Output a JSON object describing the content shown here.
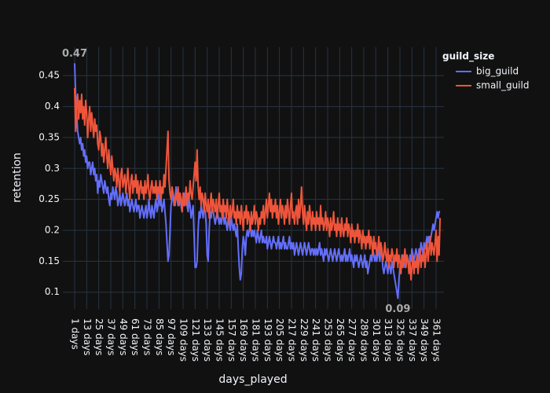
{
  "chart_data": {
    "type": "line",
    "xlabel": "days_played",
    "ylabel": "retention",
    "legend_title": "guild_size",
    "categories": [
      "1 days",
      null,
      null,
      null,
      null,
      null,
      null,
      null,
      null,
      null,
      null,
      null,
      "13 days",
      null,
      null,
      null,
      null,
      null,
      null,
      null,
      null,
      null,
      null,
      null,
      "25 days",
      null,
      null,
      null,
      null,
      null,
      null,
      null,
      null,
      null,
      null,
      null,
      "37 days",
      null,
      null,
      null,
      null,
      null,
      null,
      null,
      null,
      null,
      null,
      null,
      "49 days",
      null,
      null,
      null,
      null,
      null,
      null,
      null,
      null,
      null,
      null,
      null,
      "61 days",
      null,
      null,
      null,
      null,
      null,
      null,
      null,
      null,
      null,
      null,
      null,
      "73 days",
      null,
      null,
      null,
      null,
      null,
      null,
      null,
      null,
      null,
      null,
      null,
      "85 days",
      null,
      null,
      null,
      null,
      null,
      null,
      null,
      null,
      null,
      null,
      null,
      "97 days",
      null,
      null,
      null,
      null,
      null,
      null,
      null,
      null,
      null,
      null,
      null,
      "109 days",
      null,
      null,
      null,
      null,
      null,
      null,
      null,
      null,
      null,
      null,
      null,
      "121 days",
      null,
      null,
      null,
      null,
      null,
      null,
      null,
      null,
      null,
      null,
      null,
      "133 days",
      null,
      null,
      null,
      null,
      null,
      null,
      null,
      null,
      null,
      null,
      null,
      "145 days",
      null,
      null,
      null,
      null,
      null,
      null,
      null,
      null,
      null,
      null,
      null,
      "157 days",
      null,
      null,
      null,
      null,
      null,
      null,
      null,
      null,
      null,
      null,
      null,
      "169 days",
      null,
      null,
      null,
      null,
      null,
      null,
      null,
      null,
      null,
      null,
      null,
      "181 days",
      null,
      null,
      null,
      null,
      null,
      null,
      null,
      null,
      null,
      null,
      null,
      "193 days",
      null,
      null,
      null,
      null,
      null,
      null,
      null,
      null,
      null,
      null,
      null,
      "205 days",
      null,
      null,
      null,
      null,
      null,
      null,
      null,
      null,
      null,
      null,
      null,
      "217 days",
      null,
      null,
      null,
      null,
      null,
      null,
      null,
      null,
      null,
      null,
      null,
      "229 days",
      null,
      null,
      null,
      null,
      null,
      null,
      null,
      null,
      null,
      null,
      null,
      "241 days",
      null,
      null,
      null,
      null,
      null,
      null,
      null,
      null,
      null,
      null,
      null,
      "253 days",
      null,
      null,
      null,
      null,
      null,
      null,
      null,
      null,
      null,
      null,
      null,
      "265 days",
      null,
      null,
      null,
      null,
      null,
      null,
      null,
      null,
      null,
      null,
      null,
      "277 days",
      null,
      null,
      null,
      null,
      null,
      null,
      null,
      null,
      null,
      null,
      null,
      "289 days",
      null,
      null,
      null,
      null,
      null,
      null,
      null,
      null,
      null,
      null,
      null,
      "301 days",
      null,
      null,
      null,
      null,
      null,
      null,
      null,
      null,
      null,
      null,
      null,
      "313 days",
      null,
      null,
      null,
      null,
      null,
      null,
      null,
      null,
      null,
      null,
      null,
      "325 days",
      null,
      null,
      null,
      null,
      null,
      null,
      null,
      null,
      null,
      null,
      null,
      "337 days",
      null,
      null,
      null,
      null,
      null,
      null,
      null,
      null,
      null,
      null,
      null,
      "349 days",
      null,
      null,
      null,
      null,
      null,
      null,
      null,
      null,
      null,
      null,
      null,
      "361 days",
      null,
      null,
      null,
      null
    ],
    "series": [
      {
        "name": "big_guild",
        "color": "#636efa",
        "values": [
          0.47,
          0.42,
          0.39,
          0.36,
          0.35,
          0.34,
          0.35,
          0.33,
          0.34,
          0.32,
          0.33,
          0.31,
          0.32,
          0.3,
          0.31,
          0.31,
          0.29,
          0.3,
          0.31,
          0.29,
          0.3,
          0.28,
          0.29,
          0.26,
          0.28,
          0.27,
          0.29,
          0.28,
          0.27,
          0.26,
          0.28,
          0.27,
          0.26,
          0.27,
          0.25,
          0.24,
          0.26,
          0.25,
          0.27,
          0.26,
          0.25,
          0.27,
          0.26,
          0.24,
          0.25,
          0.26,
          0.24,
          0.25,
          0.26,
          0.25,
          0.24,
          0.25,
          0.26,
          0.24,
          0.25,
          0.23,
          0.24,
          0.25,
          0.24,
          0.23,
          0.24,
          0.25,
          0.23,
          0.24,
          0.24,
          0.22,
          0.23,
          0.24,
          0.23,
          0.22,
          0.23,
          0.24,
          0.22,
          0.23,
          0.25,
          0.23,
          0.22,
          0.24,
          0.23,
          0.22,
          0.24,
          0.25,
          0.23,
          0.24,
          0.26,
          0.24,
          0.25,
          0.23,
          0.24,
          0.25,
          0.23,
          0.21,
          0.18,
          0.15,
          0.16,
          0.2,
          0.24,
          0.25,
          0.26,
          0.24,
          0.25,
          0.27,
          0.25,
          0.24,
          0.26,
          0.25,
          0.24,
          0.23,
          0.25,
          0.26,
          0.24,
          0.25,
          0.24,
          0.23,
          0.25,
          0.24,
          0.22,
          0.23,
          0.24,
          0.19,
          0.14,
          0.14,
          0.15,
          0.2,
          0.23,
          0.22,
          0.24,
          0.23,
          0.22,
          0.24,
          0.23,
          0.21,
          0.16,
          0.15,
          0.2,
          0.23,
          0.22,
          0.24,
          0.23,
          0.22,
          0.21,
          0.22,
          0.23,
          0.22,
          0.21,
          0.22,
          0.21,
          0.22,
          0.23,
          0.21,
          0.22,
          0.21,
          0.2,
          0.22,
          0.21,
          0.2,
          0.22,
          0.21,
          0.2,
          0.21,
          0.2,
          0.19,
          0.21,
          0.17,
          0.14,
          0.12,
          0.13,
          0.17,
          0.19,
          0.18,
          0.16,
          0.19,
          0.2,
          0.19,
          0.2,
          0.21,
          0.19,
          0.2,
          0.19,
          0.2,
          0.19,
          0.18,
          0.2,
          0.19,
          0.18,
          0.19,
          0.2,
          0.18,
          0.19,
          0.18,
          0.18,
          0.19,
          0.17,
          0.18,
          0.19,
          0.18,
          0.17,
          0.18,
          0.19,
          0.18,
          0.18,
          0.17,
          0.18,
          0.19,
          0.17,
          0.18,
          0.17,
          0.18,
          0.19,
          0.17,
          0.18,
          0.17,
          0.17,
          0.18,
          0.19,
          0.17,
          0.18,
          0.17,
          0.18,
          0.16,
          0.17,
          0.18,
          0.17,
          0.16,
          0.17,
          0.18,
          0.17,
          0.16,
          0.17,
          0.18,
          0.17,
          0.16,
          0.17,
          0.18,
          0.17,
          0.16,
          0.17,
          0.17,
          0.16,
          0.17,
          0.16,
          0.17,
          0.16,
          0.17,
          0.18,
          0.16,
          0.17,
          0.16,
          0.15,
          0.17,
          0.16,
          0.17,
          0.16,
          0.15,
          0.16,
          0.17,
          0.16,
          0.15,
          0.16,
          0.17,
          0.16,
          0.15,
          0.16,
          0.17,
          0.16,
          0.15,
          0.16,
          0.15,
          0.16,
          0.17,
          0.15,
          0.16,
          0.15,
          0.16,
          0.17,
          0.15,
          0.16,
          0.15,
          0.14,
          0.16,
          0.15,
          0.16,
          0.15,
          0.14,
          0.15,
          0.16,
          0.15,
          0.14,
          0.15,
          0.16,
          0.14,
          0.15,
          0.13,
          0.14,
          0.15,
          0.16,
          0.15,
          0.17,
          0.16,
          0.15,
          0.16,
          0.15,
          0.17,
          0.16,
          0.15,
          0.17,
          0.16,
          0.14,
          0.13,
          0.14,
          0.15,
          0.14,
          0.13,
          0.15,
          0.14,
          0.13,
          0.15,
          0.14,
          0.13,
          0.12,
          0.11,
          0.1,
          0.09,
          0.12,
          0.14,
          0.15,
          0.14,
          0.16,
          0.15,
          0.14,
          0.15,
          0.16,
          0.15,
          0.14,
          0.16,
          0.15,
          0.17,
          0.16,
          0.15,
          0.16,
          0.17,
          0.16,
          0.15,
          0.17,
          0.16,
          0.18,
          0.17,
          0.16,
          0.18,
          0.17,
          0.18,
          0.19,
          0.18,
          0.19,
          0.18,
          0.19,
          0.2,
          0.21,
          0.2,
          0.21,
          0.22,
          0.23,
          0.22,
          0.23,
          0.23
        ]
      },
      {
        "name": "small_guild",
        "color": "#EF553B",
        "values": [
          0.43,
          0.36,
          0.4,
          0.42,
          0.38,
          0.41,
          0.39,
          0.42,
          0.38,
          0.4,
          0.37,
          0.41,
          0.39,
          0.35,
          0.38,
          0.4,
          0.36,
          0.39,
          0.37,
          0.35,
          0.38,
          0.36,
          0.37,
          0.34,
          0.33,
          0.36,
          0.35,
          0.32,
          0.34,
          0.31,
          0.33,
          0.35,
          0.32,
          0.3,
          0.33,
          0.31,
          0.29,
          0.32,
          0.3,
          0.28,
          0.3,
          0.29,
          0.27,
          0.3,
          0.28,
          0.26,
          0.29,
          0.3,
          0.27,
          0.28,
          0.29,
          0.26,
          0.28,
          0.3,
          0.27,
          0.25,
          0.28,
          0.29,
          0.26,
          0.28,
          0.27,
          0.29,
          0.26,
          0.28,
          0.25,
          0.27,
          0.28,
          0.26,
          0.27,
          0.25,
          0.28,
          0.26,
          0.27,
          0.29,
          0.26,
          0.25,
          0.27,
          0.28,
          0.26,
          0.27,
          0.26,
          0.28,
          0.25,
          0.27,
          0.26,
          0.28,
          0.25,
          0.27,
          0.26,
          0.29,
          0.27,
          0.3,
          0.33,
          0.36,
          0.28,
          0.26,
          0.25,
          0.27,
          0.26,
          0.25,
          0.24,
          0.26,
          0.25,
          0.27,
          0.24,
          0.26,
          0.25,
          0.23,
          0.26,
          0.24,
          0.25,
          0.27,
          0.24,
          0.26,
          0.25,
          0.28,
          0.26,
          0.25,
          0.27,
          0.29,
          0.31,
          0.28,
          0.33,
          0.27,
          0.25,
          0.27,
          0.24,
          0.26,
          0.25,
          0.23,
          0.26,
          0.24,
          0.23,
          0.25,
          0.22,
          0.24,
          0.26,
          0.23,
          0.25,
          0.24,
          0.23,
          0.25,
          0.22,
          0.24,
          0.26,
          0.23,
          0.24,
          0.22,
          0.25,
          0.23,
          0.24,
          0.22,
          0.25,
          0.23,
          0.21,
          0.24,
          0.22,
          0.23,
          0.25,
          0.22,
          0.23,
          0.21,
          0.24,
          0.22,
          0.23,
          0.21,
          0.24,
          0.22,
          0.2,
          0.23,
          0.22,
          0.24,
          0.21,
          0.23,
          0.22,
          0.2,
          0.23,
          0.21,
          0.22,
          0.24,
          0.21,
          0.23,
          0.22,
          0.2,
          0.22,
          0.21,
          0.23,
          0.22,
          0.24,
          0.21,
          0.23,
          0.25,
          0.22,
          0.24,
          0.26,
          0.23,
          0.25,
          0.22,
          0.24,
          0.23,
          0.25,
          0.22,
          0.24,
          0.21,
          0.23,
          0.25,
          0.22,
          0.24,
          0.23,
          0.21,
          0.24,
          0.22,
          0.25,
          0.23,
          0.21,
          0.24,
          0.26,
          0.22,
          0.23,
          0.21,
          0.23,
          0.24,
          0.21,
          0.25,
          0.22,
          0.24,
          0.27,
          0.23,
          0.21,
          0.24,
          0.22,
          0.2,
          0.23,
          0.21,
          0.24,
          0.22,
          0.2,
          0.23,
          0.21,
          0.22,
          0.2,
          0.23,
          0.21,
          0.22,
          0.2,
          0.24,
          0.21,
          0.22,
          0.2,
          0.21,
          0.23,
          0.2,
          0.22,
          0.21,
          0.19,
          0.22,
          0.2,
          0.21,
          0.23,
          0.2,
          0.21,
          0.19,
          0.22,
          0.2,
          0.21,
          0.19,
          0.22,
          0.2,
          0.19,
          0.21,
          0.2,
          0.22,
          0.19,
          0.21,
          0.2,
          0.18,
          0.21,
          0.19,
          0.2,
          0.18,
          0.2,
          0.19,
          0.21,
          0.18,
          0.2,
          0.19,
          0.17,
          0.2,
          0.18,
          0.19,
          0.17,
          0.19,
          0.18,
          0.2,
          0.17,
          0.19,
          0.18,
          0.16,
          0.19,
          0.17,
          0.18,
          0.16,
          0.17,
          0.19,
          0.16,
          0.18,
          0.17,
          0.15,
          0.16,
          0.18,
          0.16,
          0.15,
          0.17,
          0.14,
          0.16,
          0.15,
          0.17,
          0.16,
          0.14,
          0.16,
          0.15,
          0.17,
          0.14,
          0.16,
          0.15,
          0.13,
          0.16,
          0.14,
          0.15,
          0.17,
          0.14,
          0.16,
          0.15,
          0.13,
          0.15,
          0.12,
          0.14,
          0.16,
          0.13,
          0.15,
          0.14,
          0.16,
          0.13,
          0.15,
          0.17,
          0.14,
          0.16,
          0.15,
          0.17,
          0.14,
          0.16,
          0.18,
          0.15,
          0.17,
          0.19,
          0.16,
          0.18,
          0.17,
          0.16,
          0.18,
          0.2,
          0.15,
          0.19,
          0.16,
          0.22
        ]
      }
    ],
    "annotations": [
      {
        "text": "0.47",
        "series": 0,
        "index": 0
      },
      {
        "text": "0.09",
        "series": 0,
        "index": 322
      }
    ],
    "ylim": [
      0.073,
      0.496
    ],
    "yticks": [
      0.1,
      0.15,
      0.2,
      0.25,
      0.3,
      0.35,
      0.4,
      0.45
    ],
    "grid": true
  }
}
